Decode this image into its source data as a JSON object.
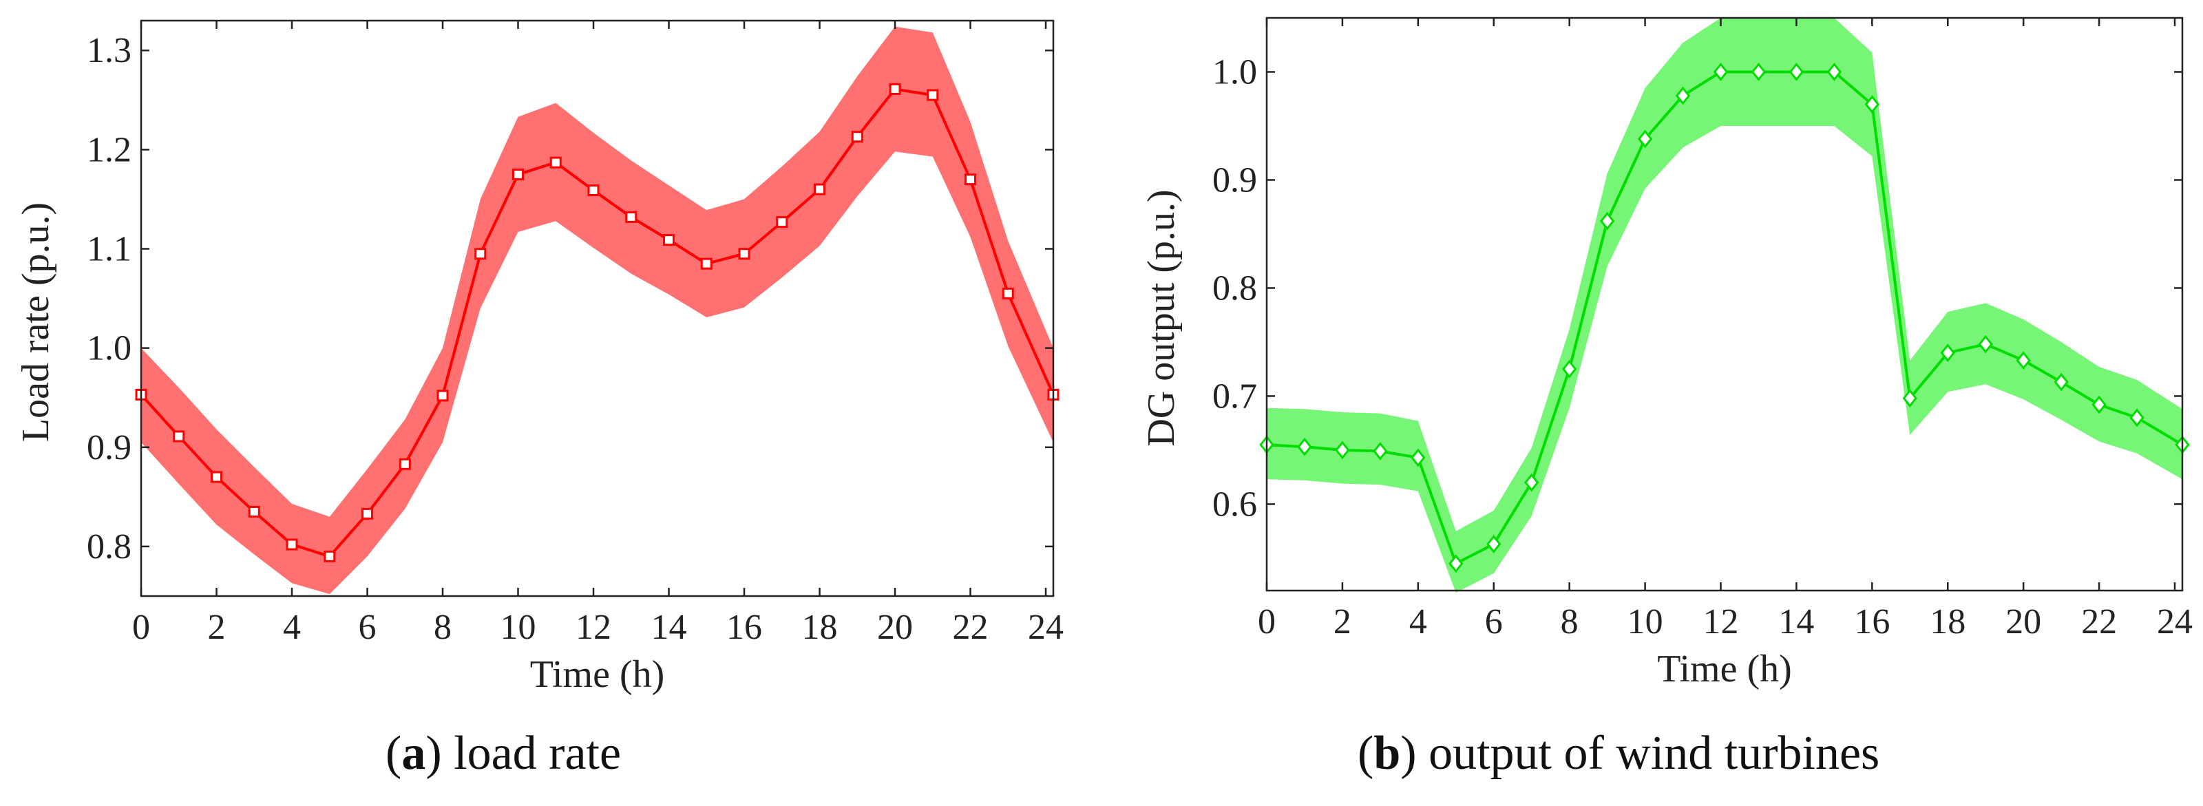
{
  "chart_data": [
    {
      "type": "line",
      "subplot_label": "a",
      "caption": "load rate",
      "xlabel": "Time (h)",
      "ylabel": "Load rate (p.u.)",
      "xlim": [
        0,
        24.2
      ],
      "ylim": [
        0.75,
        1.33
      ],
      "xticks": [
        0,
        2,
        4,
        6,
        8,
        10,
        12,
        14,
        16,
        18,
        20,
        22,
        24
      ],
      "yticks": [
        0.8,
        0.9,
        1.0,
        1.1,
        1.2,
        1.3
      ],
      "ytick_labels": [
        "0.8",
        "0.9",
        "1.0",
        "1.1",
        "1.2",
        "1.3"
      ],
      "color": "#ff0000",
      "band_color": "#ff7070",
      "marker": "square",
      "x": [
        0,
        1,
        2,
        3,
        4,
        5,
        6,
        7,
        8,
        9,
        10,
        11,
        12,
        13,
        14,
        15,
        16,
        17,
        18,
        19,
        20,
        21,
        22,
        23,
        24.2
      ],
      "y": [
        0.953,
        0.911,
        0.87,
        0.835,
        0.802,
        0.79,
        0.833,
        0.883,
        0.952,
        1.095,
        1.175,
        1.187,
        1.159,
        1.132,
        1.109,
        1.085,
        1.095,
        1.127,
        1.16,
        1.213,
        1.261,
        1.255,
        1.17,
        1.055,
        0.953
      ],
      "upper": [
        1.0,
        0.96,
        0.918,
        0.88,
        0.843,
        0.83,
        0.878,
        0.928,
        1.0,
        1.15,
        1.233,
        1.247,
        1.217,
        1.189,
        1.164,
        1.139,
        1.15,
        1.183,
        1.218,
        1.274,
        1.324,
        1.318,
        1.228,
        1.108,
        1.0
      ],
      "lower": [
        0.905,
        0.863,
        0.822,
        0.792,
        0.763,
        0.752,
        0.79,
        0.838,
        0.905,
        1.04,
        1.117,
        1.128,
        1.101,
        1.075,
        1.054,
        1.031,
        1.041,
        1.071,
        1.103,
        1.153,
        1.198,
        1.193,
        1.112,
        1.002,
        0.905
      ]
    },
    {
      "type": "line",
      "subplot_label": "b",
      "caption": "output of wind turbines",
      "xlabel": "Time (h)",
      "ylabel": "DG output (p.u.)",
      "xlim": [
        0,
        24.2
      ],
      "ylim": [
        0.52,
        1.05
      ],
      "xticks": [
        0,
        2,
        4,
        6,
        8,
        10,
        12,
        14,
        16,
        18,
        20,
        22,
        24
      ],
      "yticks": [
        0.6,
        0.7,
        0.8,
        0.9,
        1.0
      ],
      "ytick_labels": [
        "0.6",
        "0.7",
        "0.8",
        "0.9",
        "1.0"
      ],
      "color": "#00dd00",
      "band_color": "#77f577",
      "marker": "diamond",
      "x": [
        0,
        1,
        2,
        3,
        4,
        5,
        6,
        7,
        8,
        9,
        10,
        11,
        12,
        13,
        14,
        15,
        16,
        17,
        18,
        19,
        20,
        21,
        22,
        23,
        24.2
      ],
      "y": [
        0.655,
        0.653,
        0.65,
        0.649,
        0.643,
        0.545,
        0.563,
        0.62,
        0.725,
        0.862,
        0.938,
        0.978,
        1.0,
        1.0,
        1.0,
        1.0,
        0.97,
        0.698,
        0.74,
        0.748,
        0.733,
        0.713,
        0.692,
        0.68,
        0.655
      ],
      "upper": [
        0.689,
        0.688,
        0.685,
        0.684,
        0.677,
        0.575,
        0.594,
        0.652,
        0.762,
        0.906,
        0.985,
        1.027,
        1.05,
        1.05,
        1.05,
        1.05,
        1.018,
        0.733,
        0.778,
        0.786,
        0.771,
        0.75,
        0.727,
        0.715,
        0.688
      ],
      "lower": [
        0.623,
        0.622,
        0.619,
        0.618,
        0.612,
        0.518,
        0.536,
        0.589,
        0.689,
        0.82,
        0.892,
        0.93,
        0.95,
        0.95,
        0.95,
        0.95,
        0.922,
        0.664,
        0.704,
        0.711,
        0.697,
        0.678,
        0.658,
        0.647,
        0.623
      ]
    }
  ]
}
